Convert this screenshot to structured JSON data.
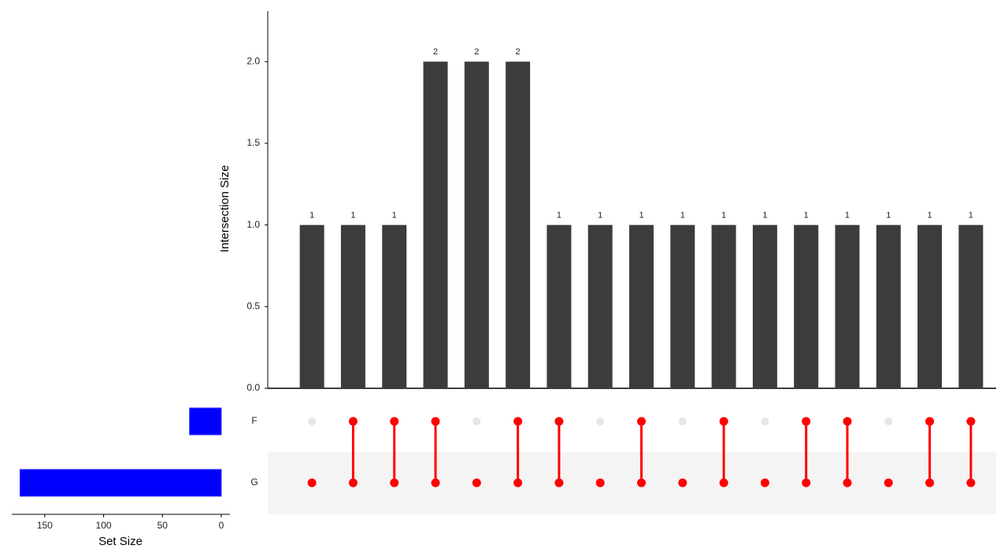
{
  "chart_data": {
    "type": "upset",
    "y_label": "Intersection Size",
    "values": [
      1,
      1,
      1,
      2,
      2,
      2,
      1,
      1,
      1,
      1,
      1,
      1,
      1,
      1,
      1,
      1,
      1
    ],
    "color": "#3c3c3c",
    "ylim": [
      0,
      2.31
    ],
    "yticks": [
      {
        "value": 0,
        "label": "0.0"
      },
      {
        "value": 0.5,
        "label": "0.5"
      },
      {
        "value": 1,
        "label": "1.0"
      },
      {
        "value": 1.5,
        "label": "1.5"
      },
      {
        "value": 2,
        "label": "2.0"
      }
    ],
    "membership": [
      [
        0,
        1
      ],
      [
        1,
        1
      ],
      [
        1,
        1
      ],
      [
        1,
        1
      ],
      [
        0,
        1
      ],
      [
        1,
        1
      ],
      [
        1,
        1
      ],
      [
        0,
        1
      ],
      [
        1,
        1
      ],
      [
        0,
        1
      ],
      [
        1,
        1
      ],
      [
        0,
        1
      ],
      [
        1,
        1
      ],
      [
        1,
        1
      ],
      [
        0,
        1
      ],
      [
        1,
        1
      ],
      [
        1,
        1
      ]
    ],
    "dot_color": "#ff0000",
    "dot_empty_color": "#e6e6e6",
    "shade_color": "#f4f4f4",
    "sets": [
      "F",
      "G"
    ],
    "set_sizes": [
      27,
      171
    ],
    "set_color": "#0000ff",
    "set_label": "Set Size",
    "set_xlim": [
      0,
      178
    ],
    "set_xticks": [
      150,
      100,
      50,
      0
    ]
  }
}
